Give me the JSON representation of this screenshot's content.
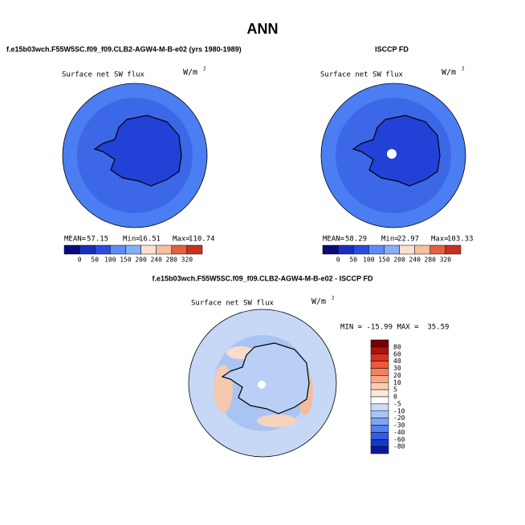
{
  "title": "ANN",
  "panels": [
    {
      "case": "f.e15b03wch.F55W5SC.f09_f09.CLB2-AGW4-M-B-e02 (yrs 1980-1989)",
      "variable": "Surface net SW flux",
      "units": "W/m",
      "units_exp": "2",
      "stats": {
        "mean_label": "MEAN=",
        "mean": "57.15",
        "min_label": "Min=",
        "min": "16.51",
        "max_label": "Max=",
        "max": "110.74"
      },
      "colorbar": [
        "0",
        "50",
        "100",
        "150",
        "200",
        "240",
        "280",
        "320"
      ]
    },
    {
      "case": "ISCCP FD",
      "variable": "Surface net SW flux",
      "units": "W/m",
      "units_exp": "2",
      "stats": {
        "mean_label": "MEAN=",
        "mean": "58.29",
        "min_label": "Min=",
        "min": "22.97",
        "max_label": "Max=",
        "max": "103.33"
      },
      "colorbar": [
        "0",
        "50",
        "100",
        "150",
        "200",
        "240",
        "280",
        "320"
      ]
    }
  ],
  "difference": {
    "title": "f.e15b03wch.F55W5SC.f09_f09.CLB2-AGW4-M-B-e02 - ISCCP FD",
    "variable": "Surface net SW flux",
    "units": "W/m",
    "units_exp": "2",
    "stats": "MIN = -15.99 MAX =  35.59",
    "colorbar": [
      "80",
      "60",
      "40",
      "30",
      "20",
      "10",
      "5",
      "0",
      "-5",
      "-10",
      "-20",
      "-30",
      "-40",
      "-60",
      "-80"
    ]
  }
}
